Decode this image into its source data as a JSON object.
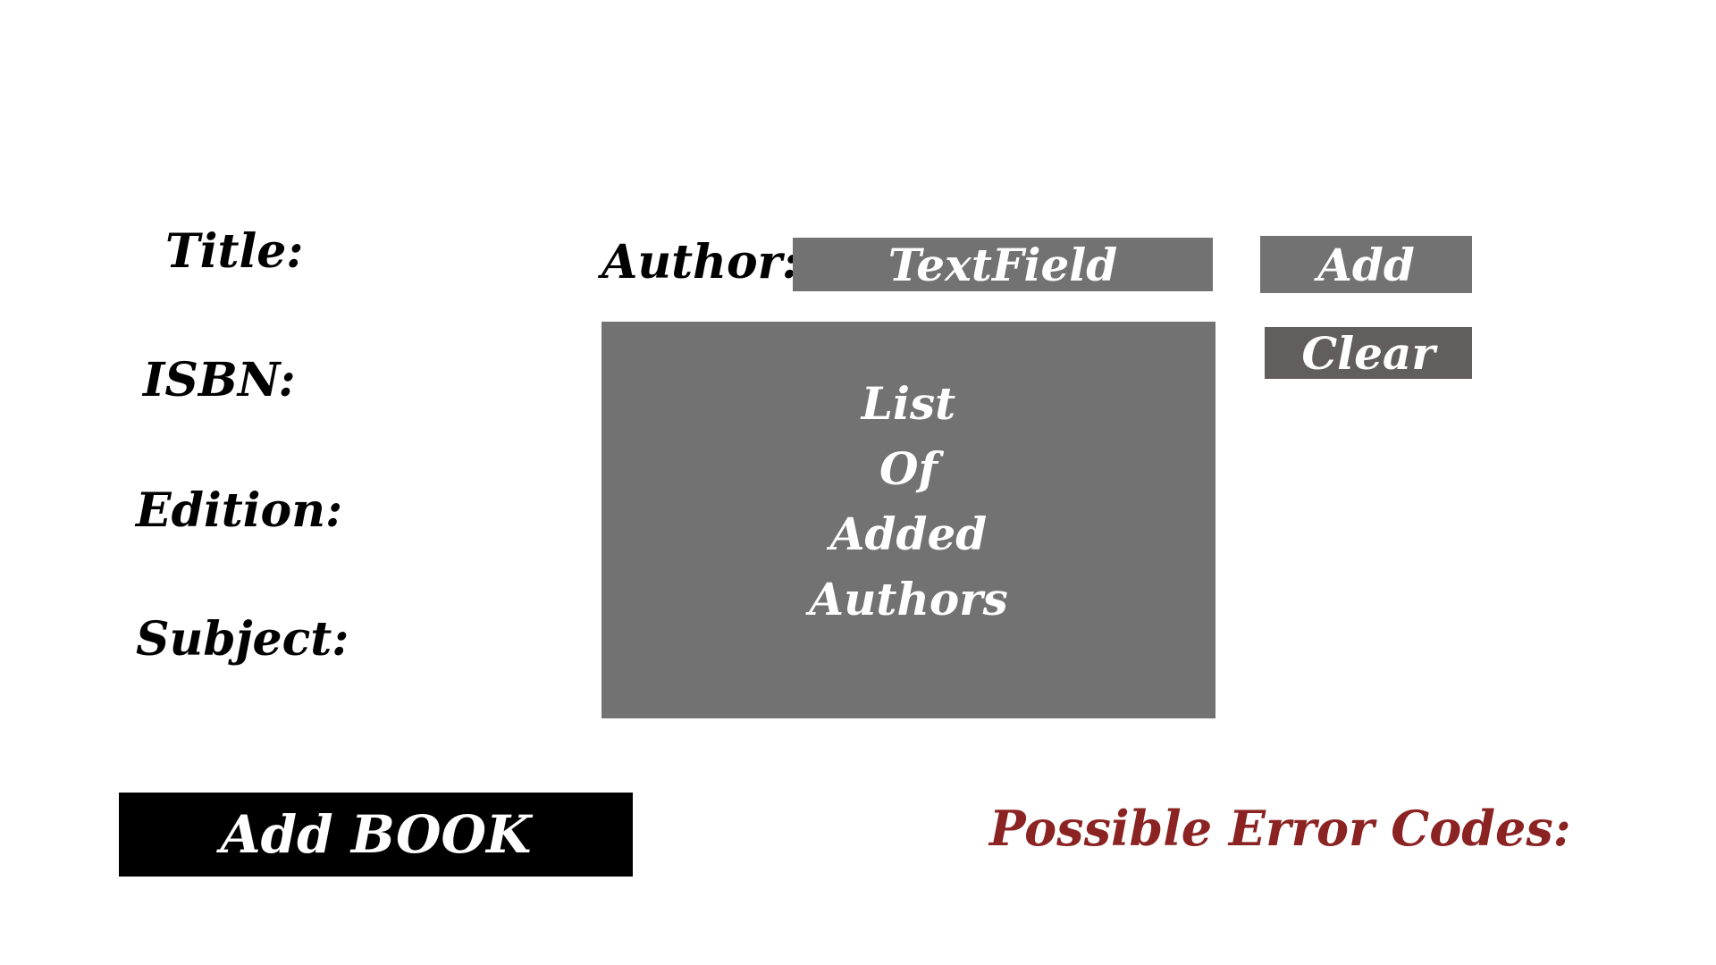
{
  "form": {
    "title_label": "Title:",
    "isbn_label": "ISBN:",
    "edition_label": "Edition:",
    "subject_label": "Subject:",
    "author_label": "Author:",
    "author_field_text": "TextField",
    "add_author_label": "Add",
    "clear_label": "Clear",
    "author_list_lines": [
      "List",
      "Of",
      "Added",
      "Authors"
    ],
    "add_book_label": "Add BOOK",
    "error_label": "Possible Error Codes:"
  },
  "colors": {
    "background": "#ffffff",
    "gray_box": "#727272",
    "clear_button": "#625e5d",
    "add_book_button": "#000000",
    "error_text": "#8b2323"
  }
}
